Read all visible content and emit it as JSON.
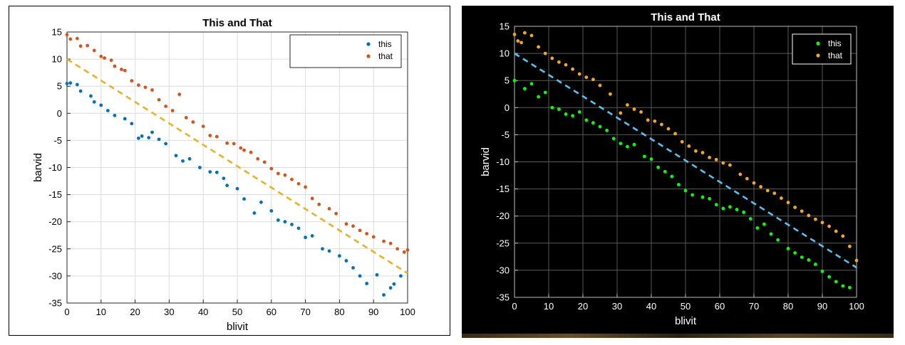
{
  "chart_data": [
    {
      "type": "scatter",
      "theme": "light",
      "title": "This and That",
      "xlabel": "blivit",
      "ylabel": "barvid",
      "xlim": [
        0,
        100
      ],
      "ylim": [
        -35,
        15
      ],
      "xticks": [
        0,
        10,
        20,
        30,
        40,
        50,
        60,
        70,
        80,
        90,
        100
      ],
      "yticks": [
        15,
        10,
        5,
        0,
        -5,
        -10,
        -15,
        -20,
        -25,
        -30,
        -35
      ],
      "grid": true,
      "legend_position": "top-right",
      "series": [
        {
          "name": "this",
          "color": "#0072bd",
          "x": [
            0,
            1,
            3,
            4,
            7,
            8,
            10,
            12,
            14,
            17,
            19,
            21,
            22,
            24,
            25,
            27,
            29,
            32,
            34,
            36,
            39,
            42,
            44,
            46,
            47,
            50,
            52,
            55,
            57,
            60,
            62,
            64,
            66,
            68,
            70,
            72,
            75,
            77,
            80,
            82,
            84,
            86,
            88,
            91,
            93,
            95,
            96,
            98
          ],
          "y": [
            5.5,
            5.6,
            5.3,
            4.1,
            3.2,
            2.1,
            1.5,
            0.5,
            -0.4,
            -1.0,
            -1.9,
            -4.6,
            -4.2,
            -4.5,
            -3.5,
            -4.8,
            -5.6,
            -7.8,
            -8.8,
            -8.4,
            -10.0,
            -10.8,
            -10.9,
            -12.0,
            -13.3,
            -13.9,
            -15.8,
            -18.4,
            -16.4,
            -18.0,
            -19.7,
            -20.0,
            -20.5,
            -21.2,
            -22.9,
            -22.6,
            -25.0,
            -25.4,
            -26.3,
            -27.2,
            -28.5,
            -30.0,
            -31.4,
            -29.8,
            -33.5,
            -32.2,
            -31.5,
            -30.0
          ]
        },
        {
          "name": "that",
          "color": "#d95319",
          "x": [
            0,
            1,
            3,
            4,
            6,
            8,
            10,
            11,
            13,
            14,
            16,
            17,
            19,
            21,
            23,
            25,
            27,
            29,
            31,
            33,
            35,
            37,
            40,
            42,
            44,
            47,
            49,
            51,
            52,
            54,
            56,
            58,
            60,
            62,
            64,
            66,
            68,
            70,
            72,
            74,
            77,
            79,
            82,
            84,
            86,
            88,
            90,
            93,
            95,
            97,
            99,
            100
          ],
          "y": [
            14.5,
            13.7,
            13.8,
            12.4,
            12.5,
            11.6,
            10.5,
            10.2,
            9.8,
            8.7,
            8.1,
            7.9,
            6.0,
            5.2,
            4.8,
            4.3,
            2.5,
            1.3,
            0.5,
            3.5,
            -0.8,
            -1.6,
            -2.4,
            -4.1,
            -4.3,
            -5.5,
            -5.6,
            -6.4,
            -6.8,
            -7.2,
            -8.4,
            -9.0,
            -10.2,
            -11.1,
            -11.4,
            -12.2,
            -13.0,
            -13.6,
            -15.7,
            -16.8,
            -17.6,
            -18.5,
            -20.4,
            -20.8,
            -21.6,
            -22.2,
            -22.8,
            -23.6,
            -24.0,
            -25.0,
            -25.6,
            -25.2
          ]
        },
        {
          "name": "",
          "style": "dashed-line",
          "color": "#edb120",
          "x": [
            0,
            100
          ],
          "y": [
            10,
            -29.5
          ]
        }
      ]
    },
    {
      "type": "scatter",
      "theme": "dark",
      "title": "This and That",
      "xlabel": "blivit",
      "ylabel": "barvid",
      "xlim": [
        0,
        100
      ],
      "ylim": [
        -35,
        15
      ],
      "xticks": [
        0,
        10,
        20,
        30,
        40,
        50,
        60,
        70,
        80,
        90,
        100
      ],
      "yticks": [
        15,
        10,
        5,
        0,
        -5,
        -10,
        -15,
        -20,
        -25,
        -30,
        -35
      ],
      "grid": true,
      "legend_position": "top-right",
      "series": [
        {
          "name": "this",
          "color": "#00ff00",
          "x": [
            0,
            3,
            5,
            7,
            9,
            11,
            13,
            15,
            17,
            19,
            21,
            23,
            25,
            27,
            29,
            31,
            33,
            35,
            38,
            40,
            42,
            44,
            46,
            48,
            50,
            52,
            55,
            57,
            59,
            61,
            63,
            65,
            67,
            69,
            71,
            73,
            75,
            77,
            80,
            82,
            84,
            86,
            88,
            90,
            92,
            94,
            96,
            98
          ],
          "y": [
            5.0,
            3.5,
            4.4,
            2.0,
            2.8,
            0.0,
            -0.3,
            -1.2,
            -1.5,
            -0.8,
            -2.3,
            -2.8,
            -3.5,
            -4.2,
            -5.7,
            -6.6,
            -7.2,
            -6.8,
            -9.0,
            -9.5,
            -11.0,
            -11.8,
            -12.7,
            -14.2,
            -15.3,
            -16.1,
            -16.5,
            -16.8,
            -17.9,
            -18.6,
            -18.3,
            -18.8,
            -19.3,
            -20.5,
            -22.2,
            -21.5,
            -23.3,
            -24.4,
            -26.0,
            -26.8,
            -27.6,
            -28.1,
            -28.9,
            -30.2,
            -31.2,
            -32.1,
            -32.9,
            -33.2
          ]
        },
        {
          "name": "that",
          "color": "#f5a623",
          "x": [
            0,
            1,
            2,
            3,
            5,
            7,
            9,
            11,
            13,
            15,
            17,
            19,
            21,
            23,
            25,
            28,
            31,
            33,
            35,
            37,
            39,
            41,
            43,
            45,
            47,
            49,
            51,
            53,
            55,
            57,
            59,
            61,
            63,
            66,
            68,
            70,
            72,
            74,
            76,
            78,
            80,
            82,
            84,
            86,
            88,
            90,
            92,
            94,
            96,
            98,
            100
          ],
          "y": [
            13.5,
            12.3,
            12.0,
            13.8,
            13.3,
            11.2,
            10.0,
            9.1,
            8.4,
            7.9,
            7.1,
            6.2,
            5.6,
            5.2,
            4.1,
            2.5,
            -1.0,
            0.5,
            -0.3,
            -0.8,
            -2.3,
            -2.5,
            -3.1,
            -3.9,
            -4.8,
            -6.3,
            -7.1,
            -8.0,
            -8.3,
            -9.2,
            -9.6,
            -10.2,
            -10.6,
            -12.3,
            -13.1,
            -13.9,
            -14.6,
            -15.3,
            -15.8,
            -16.7,
            -17.5,
            -18.4,
            -19.1,
            -19.9,
            -20.6,
            -21.2,
            -21.9,
            -22.8,
            -23.7,
            -25.6,
            -28.2
          ]
        },
        {
          "name": "",
          "style": "dashed-line",
          "color": "#4fc3f7",
          "x": [
            0,
            100
          ],
          "y": [
            10,
            -29.5
          ]
        }
      ]
    }
  ]
}
